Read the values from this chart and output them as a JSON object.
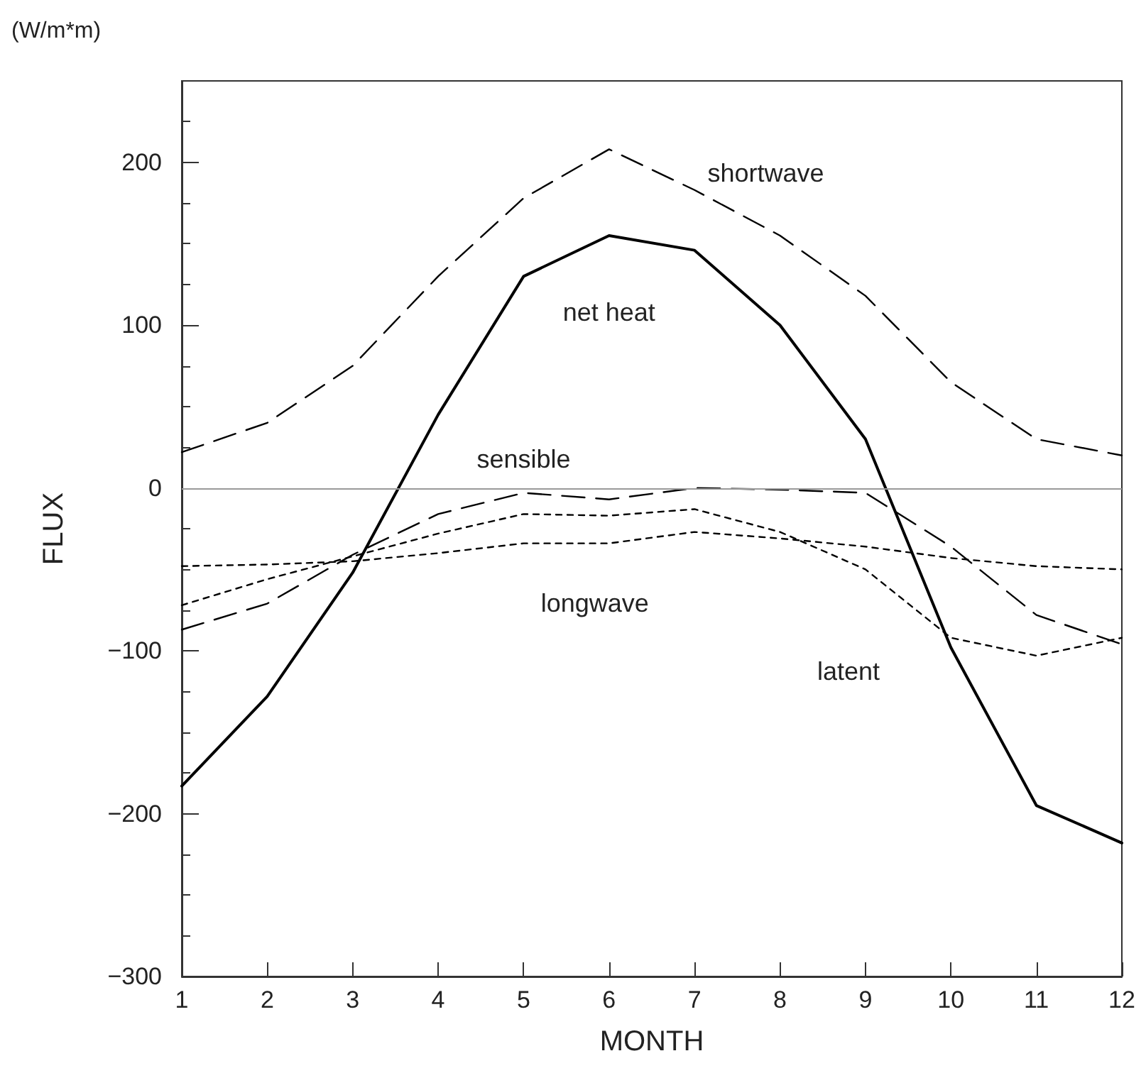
{
  "chart_data": {
    "type": "line",
    "xlabel": "MONTH",
    "ylabel": "FLUX",
    "annotations": [
      "(W/m*m)"
    ],
    "x": [
      1,
      2,
      3,
      4,
      5,
      6,
      7,
      8,
      9,
      10,
      11,
      12
    ],
    "xlim": [
      1,
      12
    ],
    "xticks": [
      1,
      2,
      3,
      4,
      5,
      6,
      7,
      8,
      9,
      10,
      11,
      12
    ],
    "ylim": [
      -300,
      250
    ],
    "yticks": [
      -300,
      -200,
      -100,
      0,
      100,
      200
    ],
    "grid": false,
    "legend": false,
    "marker": "none",
    "ref_lines": [
      {
        "axis": "y",
        "value": 0,
        "color": "#999999"
      }
    ],
    "series": [
      {
        "name": "shortwave",
        "color": "#000000",
        "line_style": "dashed",
        "values": [
          22,
          40,
          75,
          130,
          178,
          208,
          183,
          155,
          118,
          65,
          30,
          20
        ]
      },
      {
        "name": "net heat",
        "color": "#000000",
        "line_style": "solid",
        "values": [
          -183,
          -128,
          -52,
          45,
          130,
          155,
          146,
          100,
          30,
          -98,
          -195,
          -218
        ]
      },
      {
        "name": "sensible",
        "color": "#000000",
        "line_style": "dashed",
        "values": [
          -87,
          -71,
          -41,
          -16,
          -3,
          -7,
          0,
          -1,
          -3,
          -36,
          -78,
          -96
        ]
      },
      {
        "name": "longwave",
        "color": "#000000",
        "line_style": "dotted",
        "values": [
          -48,
          -47,
          -45,
          -40,
          -34,
          -34,
          -27,
          -31,
          -36,
          -43,
          -48,
          -50
        ]
      },
      {
        "name": "latent",
        "color": "#000000",
        "line_style": "dotted",
        "values": [
          -72,
          -56,
          -42,
          -28,
          -16,
          -17,
          -13,
          -27,
          -50,
          -92,
          -103,
          -92
        ]
      }
    ]
  }
}
